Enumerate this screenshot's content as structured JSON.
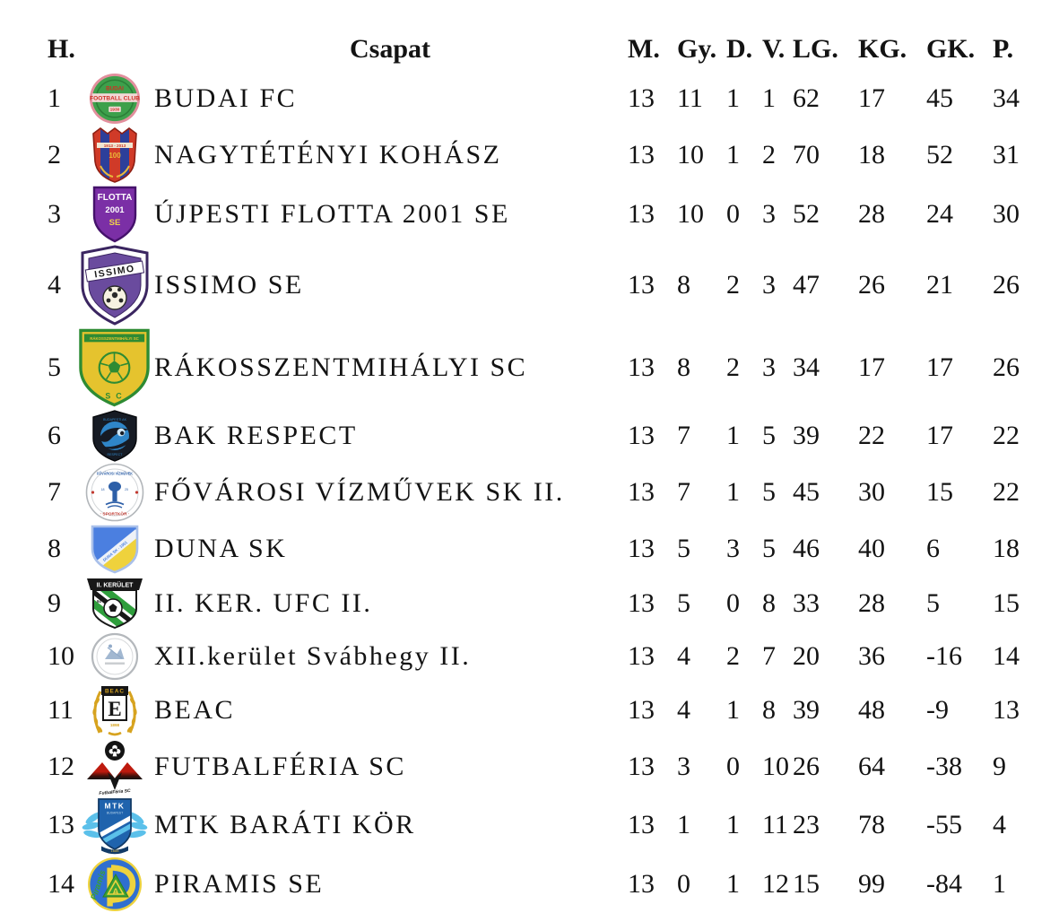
{
  "page": {
    "background": "#ffffff",
    "text_color": "#131313"
  },
  "table": {
    "columns": [
      "H.",
      "Csapat",
      "M.",
      "Gy.",
      "D.",
      "V.",
      "LG.",
      "KG.",
      "GK.",
      "P."
    ],
    "rows": [
      {
        "pos": "1",
        "team": "BUDAI FC",
        "crest": "budai-fc-crest",
        "crest_text": "BUDAI FOOTBALL CLUB 1930",
        "m": "13",
        "gy": "11",
        "d": "1",
        "v": "1",
        "lg": "62",
        "kg": "17",
        "gk": "45",
        "p": "34"
      },
      {
        "pos": "2",
        "team": "NAGYTÉTÉNYI KOHÁSZ",
        "crest": "nagytetenyi-kohasz-crest",
        "crest_text": "1913 - 2013 100",
        "m": "13",
        "gy": "10",
        "d": "1",
        "v": "2",
        "lg": "70",
        "kg": "18",
        "gk": "52",
        "p": "31"
      },
      {
        "pos": "3",
        "team": "ÚJPESTI FLOTTA 2001 SE",
        "crest": "ujpesti-flotta-crest",
        "crest_text": "FLOTTA 2001 SE",
        "m": "13",
        "gy": "10",
        "d": "0",
        "v": "3",
        "lg": "52",
        "kg": "28",
        "gk": "24",
        "p": "30"
      },
      {
        "pos": "4",
        "team": "ISSIMO SE",
        "crest": "issimo-crest",
        "crest_text": "ISSIMO",
        "m": "13",
        "gy": "8",
        "d": "2",
        "v": "3",
        "lg": "47",
        "kg": "26",
        "gk": "21",
        "p": "26"
      },
      {
        "pos": "5",
        "team": "RÁKOSSZENTMIHÁLYI SC",
        "crest": "rakosszentmihalyi-crest",
        "crest_text": "S C",
        "m": "13",
        "gy": "8",
        "d": "2",
        "v": "3",
        "lg": "34",
        "kg": "17",
        "gk": "17",
        "p": "26"
      },
      {
        "pos": "6",
        "team": "BAK RESPECT",
        "crest": "bak-respect-crest",
        "crest_text": "",
        "m": "13",
        "gy": "7",
        "d": "1",
        "v": "5",
        "lg": "39",
        "kg": "22",
        "gk": "17",
        "p": "22"
      },
      {
        "pos": "7",
        "team": "FŐVÁROSI VÍZMŰVEK SK II.",
        "crest": "fovarosi-vizmuvek-crest",
        "crest_text": "FŐVÁROSI VÍZMŰVEK SPORTKÖR",
        "m": "13",
        "gy": "7",
        "d": "1",
        "v": "5",
        "lg": "45",
        "kg": "30",
        "gk": "15",
        "p": "22"
      },
      {
        "pos": "8",
        "team": "DUNA SK",
        "crest": "duna-sk-crest",
        "crest_text": "",
        "m": "13",
        "gy": "5",
        "d": "3",
        "v": "5",
        "lg": "46",
        "kg": "40",
        "gk": "6",
        "p": "18"
      },
      {
        "pos": "9",
        "team": "II. KER. UFC II.",
        "crest": "ii-ker-ufc-crest",
        "crest_text": "II. KERÜLET UFC 94",
        "m": "13",
        "gy": "5",
        "d": "0",
        "v": "8",
        "lg": "33",
        "kg": "28",
        "gk": "5",
        "p": "15"
      },
      {
        "pos": "10",
        "team": "XII.kerület Svábhegy II.",
        "crest": "svabhegy-crest",
        "crest_text": "",
        "m": "13",
        "gy": "4",
        "d": "2",
        "v": "7",
        "lg": "20",
        "kg": "36",
        "gk": "-16",
        "p": "14"
      },
      {
        "pos": "11",
        "team": "BEAC",
        "crest": "beac-crest",
        "crest_text": "BEAC E 1898",
        "m": "13",
        "gy": "4",
        "d": "1",
        "v": "8",
        "lg": "39",
        "kg": "48",
        "gk": "-9",
        "p": "13"
      },
      {
        "pos": "12",
        "team": "FUTBALFÉRIA SC",
        "crest": "futbalferia-crest",
        "crest_text": "FutbalFéria SC",
        "m": "13",
        "gy": "3",
        "d": "0",
        "v": "10",
        "lg": "26",
        "kg": "64",
        "gk": "-38",
        "p": "9"
      },
      {
        "pos": "13",
        "team": "MTK BARÁTI KÖR",
        "crest": "mtk-barati-kor-crest",
        "crest_text": "MTK BUDAPEST",
        "m": "13",
        "gy": "1",
        "d": "1",
        "v": "11",
        "lg": "23",
        "kg": "78",
        "gk": "-55",
        "p": "4"
      },
      {
        "pos": "14",
        "team": "PIRAMIS SE",
        "crest": "piramis-se-crest",
        "crest_text": "Piramis A",
        "m": "13",
        "gy": "0",
        "d": "1",
        "v": "12",
        "lg": "15",
        "kg": "99",
        "gk": "-84",
        "p": "1"
      }
    ]
  },
  "crest_colors": {
    "budai-fc-crest": {
      "ring": "#e28f9d",
      "field": "#3da04b",
      "field_dark": "#2c7d38",
      "text": "#cf2e24",
      "band": "#f2d8d6"
    },
    "nagytetenyi-kohasz-crest": {
      "red": "#d03a28",
      "blue": "#2d3f9a",
      "gold": "#e8b83a",
      "band": "#f0e6d2",
      "outline": "#8e1f14"
    },
    "ujpesti-flotta-crest": {
      "purple": "#7b2fa6",
      "dark": "#45126b",
      "accent": "#f0d24a"
    },
    "issimo-crest": {
      "purple": "#6a4b9e",
      "dark": "#3a2560"
    },
    "rakosszentmihalyi-crest": {
      "yellow": "#e5c32e",
      "green": "#2e8b33"
    },
    "bak-respect-crest": {
      "shield": "#161b24",
      "blue": "#2f86c8"
    },
    "fovarosi-vizmuvek-crest": {
      "blue": "#2d5fa8",
      "red": "#c23a30"
    },
    "duna-sk-crest": {
      "blue": "#4b7fe0",
      "yellow": "#efd23c",
      "border": "#a9c0ea"
    },
    "ii-ker-ufc-crest": {
      "black": "#181818",
      "green": "#2f9e3c"
    },
    "svabhegy-crest": {
      "ring": "#b4b8bc",
      "mark": "#92abc9"
    },
    "beac-crest": {
      "gold": "#d7a31f",
      "black": "#161616"
    },
    "futbalferia-crest": {
      "red": "#bd1a0e",
      "black": "#141414"
    },
    "mtk-barati-kor-crest": {
      "blue": "#1f63ad",
      "light": "#5bc0ea",
      "dark": "#123a66"
    },
    "piramis-se-crest": {
      "blue": "#2f6fd0",
      "yellow": "#eed33e",
      "green": "#3aa035"
    }
  }
}
